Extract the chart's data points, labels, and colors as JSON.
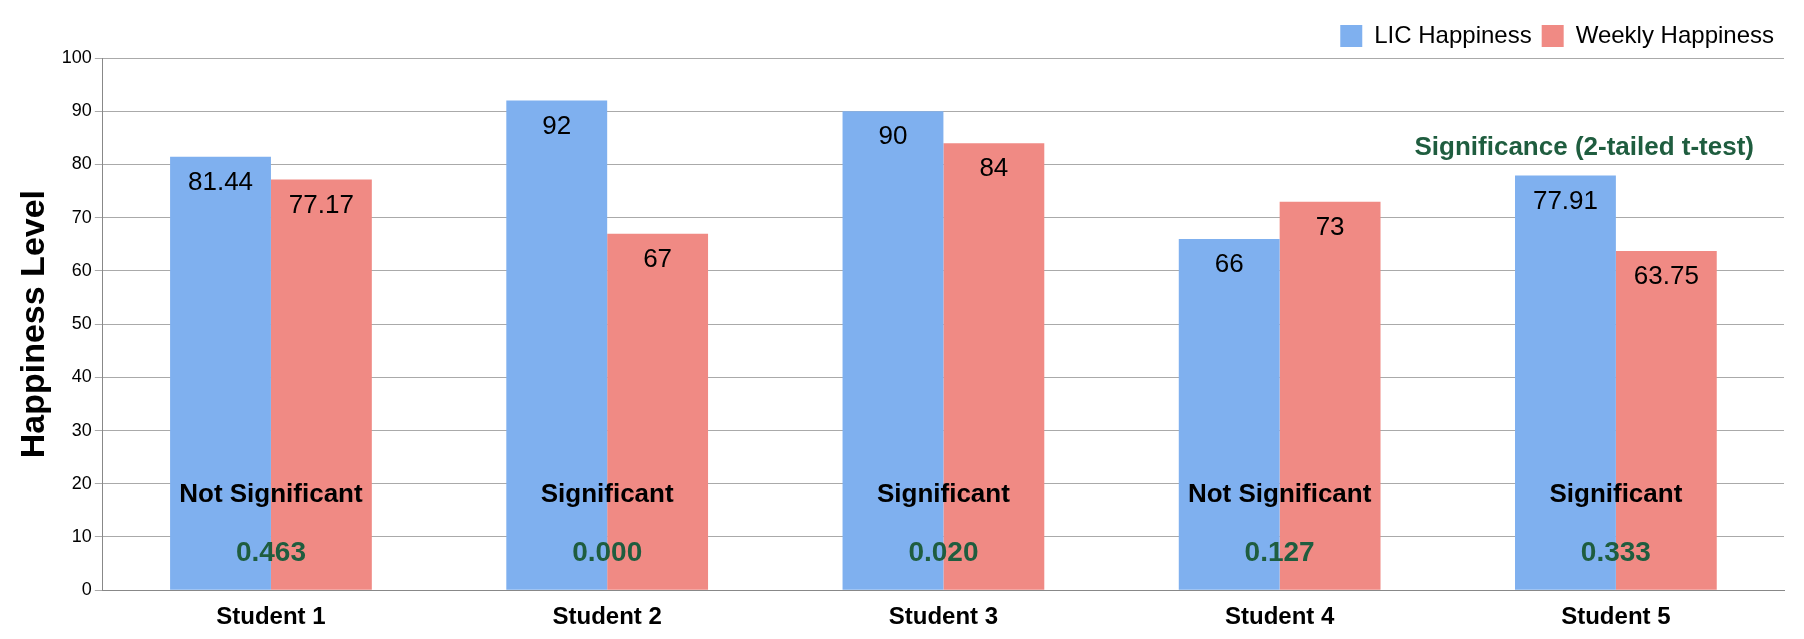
{
  "chart_data": {
    "type": "bar",
    "ylabel": "Happiness Level",
    "categories": [
      "Student 1",
      "Student 2",
      "Student 3",
      "Student 4",
      "Student 5"
    ],
    "series": [
      {
        "name": "LIC Happiness",
        "color": "#7fb0ef",
        "values": [
          81.44,
          92,
          90,
          66,
          77.91
        ]
      },
      {
        "name": "Weekly Happiness",
        "color": "#f08a84",
        "values": [
          77.17,
          67,
          84,
          73,
          63.75
        ]
      }
    ],
    "data_labels": true,
    "ylim": [
      0,
      100
    ],
    "yticks": [
      0,
      10,
      20,
      30,
      40,
      50,
      60,
      70,
      80,
      90,
      100
    ],
    "grid": "y",
    "legend": "top right",
    "annotations": [
      "Significance (2-tailed t-test)",
      {
        "text": "Not Significant",
        "x": "Student 1",
        "y": 18
      },
      {
        "text": "0.463",
        "x": "Student 1",
        "y": 7
      },
      {
        "text": "Significant",
        "x": "Student 2",
        "y": 18
      },
      {
        "text": "0.000",
        "x": "Student 2",
        "y": 7
      },
      {
        "text": "Significant",
        "x": "Student 3",
        "y": 18
      },
      {
        "text": "0.020",
        "x": "Student 3",
        "y": 7
      },
      {
        "text": "Not Significant",
        "x": "Student 4",
        "y": 18
      },
      {
        "text": "0.127",
        "x": "Student 4",
        "y": 7
      },
      {
        "text": "Significant",
        "x": "Student 5",
        "y": 18
      },
      {
        "text": "0.333",
        "x": "Student 5",
        "y": 7
      }
    ]
  }
}
